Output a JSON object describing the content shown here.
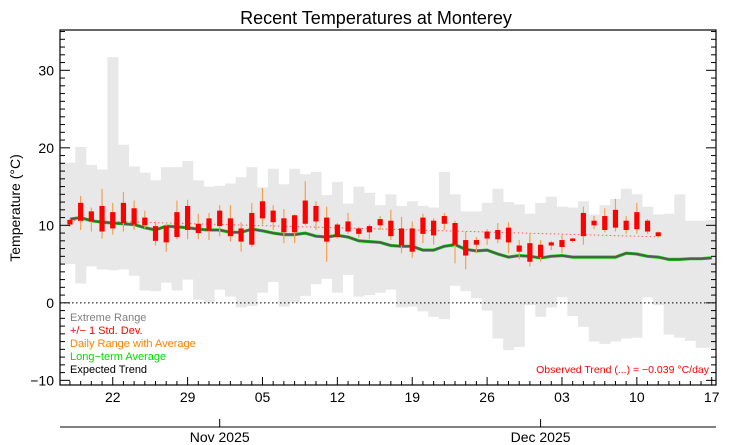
{
  "chart_data": {
    "type": "line",
    "title": "Recent Temperatures at Monterey",
    "ylabel": "Temperature (°C)",
    "xlabel": "",
    "ylim": [
      -10.6,
      35.2
    ],
    "yticks": [
      -10,
      0,
      10,
      20,
      30
    ],
    "ytick_labels": [
      "−10",
      "0",
      "10",
      "20",
      "30"
    ],
    "x_axis_note": "x values are day offsets from Oct 18, 2025",
    "xlim": [
      -0.93,
      60.4
    ],
    "xticks": [
      4,
      11,
      18,
      25,
      32,
      39,
      46,
      53,
      60
    ],
    "xtick_labels": [
      "22",
      "29",
      "05",
      "12",
      "19",
      "26",
      "03",
      "10",
      "17"
    ],
    "month_ticks": [
      14,
      44
    ],
    "month_labels": [
      "Nov 2025",
      "Dec 2025"
    ],
    "grid": false,
    "zero_line": true,
    "legend_placement": "bottom-left",
    "legend": [
      {
        "label": "Extreme Range",
        "color": "#808080"
      },
      {
        "label": "+/− 1 Std. Dev.",
        "color": "#ff0000"
      },
      {
        "label": "Daily Range with Average",
        "color": "#ff8000"
      },
      {
        "label": "Long−term Average",
        "color": "#00dd00"
      },
      {
        "label": "Expected Trend",
        "color": "#000000"
      }
    ],
    "annotation": "Observed Trend (...) = −0.039 °C/day",
    "extreme_range": {
      "start_day": 0,
      "high": [
        18.1,
        20.1,
        17.8,
        17.2,
        31.7,
        20.4,
        17.6,
        16.8,
        15.8,
        17.5,
        17.5,
        18.3,
        15.8,
        15.0,
        15.1,
        15.4,
        16.2,
        17.5,
        14.9,
        17.3,
        15.3,
        17.3,
        16.6,
        16.9,
        13.9,
        15.6,
        12.8,
        15.0,
        14.2,
        12.6,
        14.0,
        12.5,
        13.1,
        12.5,
        12.3,
        16.9,
        14.0,
        11.8,
        11.8,
        12.9,
        14.7,
        13.0,
        12.7,
        11.5,
        12.9,
        13.7,
        12.4,
        12.3,
        13.1,
        11.4,
        12.6,
        13.4,
        14.7,
        14.0,
        12.4,
        11.4,
        11.5,
        14.0,
        10.6,
        10.6,
        10.7
      ],
      "low": [
        5.0,
        2.5,
        4.7,
        4.3,
        4.2,
        4.3,
        3.5,
        1.6,
        1.5,
        2.6,
        1.6,
        3.0,
        0.4,
        0.0,
        1.7,
        0.8,
        -0.6,
        -0.4,
        1.3,
        2.7,
        -0.5,
        0.0,
        0.9,
        2.4,
        3.1,
        1.3,
        3.6,
        0.8,
        1.0,
        1.3,
        1.7,
        -0.6,
        -0.5,
        -1.1,
        -1.8,
        -2.1,
        2.2,
        1.5,
        0.6,
        -1.0,
        -4.6,
        -6.1,
        -5.7,
        -0.3,
        -1.8,
        -0.6,
        0.7,
        -1.7,
        -3.1,
        -5.0,
        -5.3,
        -5.0,
        -4.6,
        -4.5,
        0.7,
        -0.3,
        -4.1,
        -4.5,
        -4.9,
        -5.8,
        -5.8
      ]
    },
    "long_term_average": [
      10.8,
      11.0,
      10.6,
      10.4,
      10.3,
      10.2,
      10.1,
      9.7,
      9.4,
      9.9,
      9.8,
      9.7,
      9.5,
      9.4,
      9.4,
      9.1,
      9.1,
      9.5,
      9.3,
      9.0,
      8.8,
      8.8,
      9.0,
      8.6,
      8.5,
      8.7,
      8.5,
      8.0,
      7.9,
      7.8,
      7.4,
      7.3,
      7.3,
      6.8,
      6.8,
      7.3,
      7.5,
      6.9,
      6.7,
      6.8,
      6.3,
      5.9,
      6.1,
      6.0,
      5.8,
      6.0,
      6.1,
      5.9,
      5.9,
      5.9,
      5.9,
      5.9,
      6.4,
      6.3,
      6.0,
      5.9,
      5.6,
      5.6,
      5.7,
      5.7,
      5.8
    ],
    "observed_trend": {
      "start_day": 0,
      "end_day": 55,
      "start_value": 10.66,
      "slope_per_day": -0.039
    },
    "daily": {
      "start_day": 0,
      "max": [
        11.0,
        13.8,
        12.3,
        14.7,
        12.9,
        14.3,
        13.2,
        11.9,
        10.5,
        10.1,
        13.2,
        13.3,
        11.5,
        11.6,
        12.6,
        12.6,
        10.4,
        12.9,
        14.8,
        12.6,
        12.1,
        11.4,
        15.7,
        13.1,
        12.4,
        10.3,
        11.6,
        9.8,
        10.1,
        11.2,
        12.0,
        11.1,
        10.5,
        11.5,
        10.9,
        11.6,
        10.6,
        9.2,
        8.5,
        9.5,
        10.3,
        10.4,
        8.1,
        9.0,
        8.1,
        8.0,
        8.8,
        8.4,
        12.4,
        11.2,
        12.2,
        13.4,
        11.2,
        12.9,
        10.8,
        9.2
      ],
      "min": [
        9.8,
        9.4,
        9.2,
        8.3,
        8.8,
        9.2,
        9.4,
        9.6,
        7.4,
        6.6,
        8.2,
        8.2,
        8.2,
        8.1,
        8.6,
        7.9,
        6.6,
        7.2,
        10.1,
        9.4,
        7.7,
        7.7,
        10.0,
        9.4,
        5.3,
        8.3,
        8.9,
        8.4,
        8.2,
        9.4,
        8.1,
        6.4,
        5.8,
        7.7,
        7.5,
        9.4,
        5.1,
        4.3,
        6.4,
        7.5,
        7.7,
        6.4,
        5.6,
        4.7,
        5.3,
        6.8,
        6.4,
        7.8,
        7.5,
        9.5,
        9.1,
        9.2,
        8.9,
        8.9,
        8.9,
        8.4
      ],
      "std_high": [
        10.7,
        12.9,
        11.8,
        12.5,
        11.7,
        12.9,
        12.2,
        11.0,
        9.9,
        9.9,
        11.7,
        12.5,
        10.2,
        10.9,
        11.9,
        10.9,
        9.6,
        11.6,
        13.1,
        11.9,
        10.9,
        11.3,
        13.2,
        12.5,
        11.0,
        10.1,
        10.5,
        9.6,
        9.9,
        10.8,
        10.6,
        9.6,
        9.6,
        11.0,
        10.6,
        11.2,
        10.3,
        8.1,
        8.1,
        9.2,
        9.4,
        9.7,
        7.4,
        7.7,
        7.5,
        7.8,
        8.1,
        8.3,
        11.6,
        10.6,
        11.2,
        12.0,
        10.6,
        11.7,
        10.6,
        9.1
      ],
      "std_low": [
        10.1,
        10.6,
        10.5,
        9.2,
        9.6,
        10.3,
        10.1,
        10.0,
        8.0,
        7.8,
        8.5,
        9.4,
        9.0,
        9.3,
        9.9,
        8.6,
        7.9,
        7.5,
        10.9,
        10.4,
        9.1,
        9.1,
        10.2,
        10.5,
        7.9,
        8.5,
        9.2,
        8.9,
        9.1,
        10.0,
        8.6,
        7.4,
        6.6,
        8.9,
        8.7,
        10.2,
        7.5,
        6.1,
        7.5,
        8.3,
        8.2,
        7.8,
        6.6,
        5.3,
        5.9,
        7.4,
        7.2,
        8.0,
        8.6,
        10.0,
        9.4,
        9.7,
        9.4,
        9.5,
        9.2,
        8.6
      ]
    },
    "colors": {
      "extreme": "#e8e8e8",
      "std": "#ff0000",
      "range": "#f5a050",
      "long_term": "#00dd00",
      "expected": "#555555",
      "observed_trend": "#ff6060"
    }
  }
}
